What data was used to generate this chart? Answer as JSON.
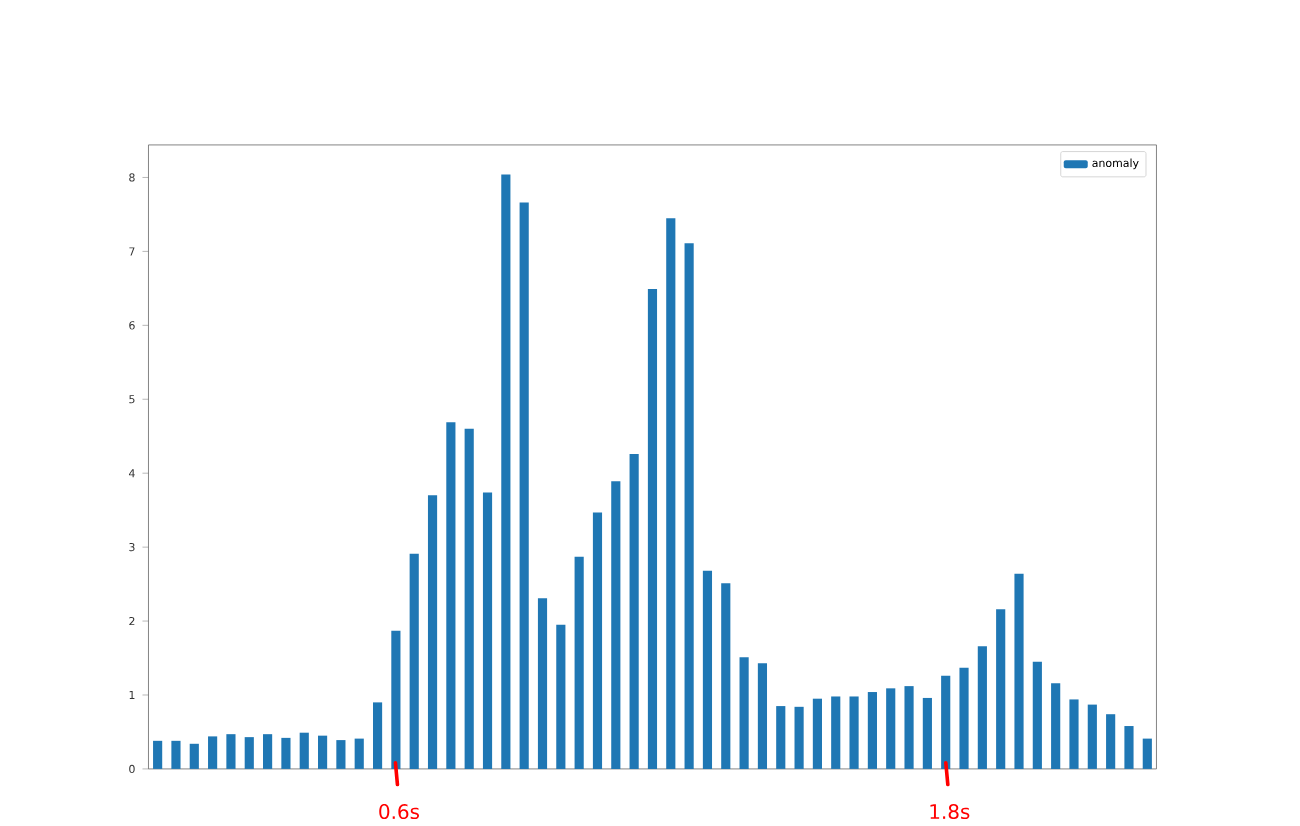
{
  "chart_data": {
    "type": "bar",
    "categories": [
      null,
      null,
      null,
      null,
      null,
      null,
      null,
      null,
      null,
      null,
      null,
      null,
      null,
      null,
      null,
      null,
      null,
      null,
      null,
      null,
      null,
      null,
      null,
      null,
      null,
      null,
      null,
      null,
      null,
      null,
      null,
      null,
      null,
      null,
      null,
      null,
      null,
      null,
      null,
      null,
      null,
      null,
      null,
      null,
      null,
      null,
      null,
      null,
      null,
      null,
      null,
      null,
      null,
      null,
      null
    ],
    "series": [
      {
        "name": "anomaly",
        "color": "#1f77b4",
        "values": [
          0.38,
          0.38,
          0.34,
          0.44,
          0.47,
          0.43,
          0.47,
          0.42,
          0.49,
          0.45,
          0.39,
          0.41,
          0.9,
          1.87,
          2.91,
          3.7,
          4.69,
          4.6,
          3.74,
          8.04,
          7.66,
          2.31,
          1.95,
          2.87,
          3.47,
          3.89,
          4.26,
          6.49,
          7.45,
          7.11,
          2.68,
          2.51,
          1.51,
          1.43,
          0.85,
          0.84,
          0.95,
          0.98,
          0.98,
          1.04,
          1.09,
          1.12,
          0.96,
          1.26,
          1.37,
          1.66,
          2.16,
          2.64,
          1.45,
          1.16,
          0.94,
          0.87,
          0.74,
          0.58,
          0.41
        ]
      }
    ],
    "ylim": [
      0,
      8.44
    ],
    "yticks": [
      0,
      1,
      2,
      3,
      4,
      5,
      6,
      7,
      8
    ],
    "legend": "top right",
    "tick_labels": "y",
    "annotations": [
      "0.6s",
      "1.8s"
    ]
  }
}
